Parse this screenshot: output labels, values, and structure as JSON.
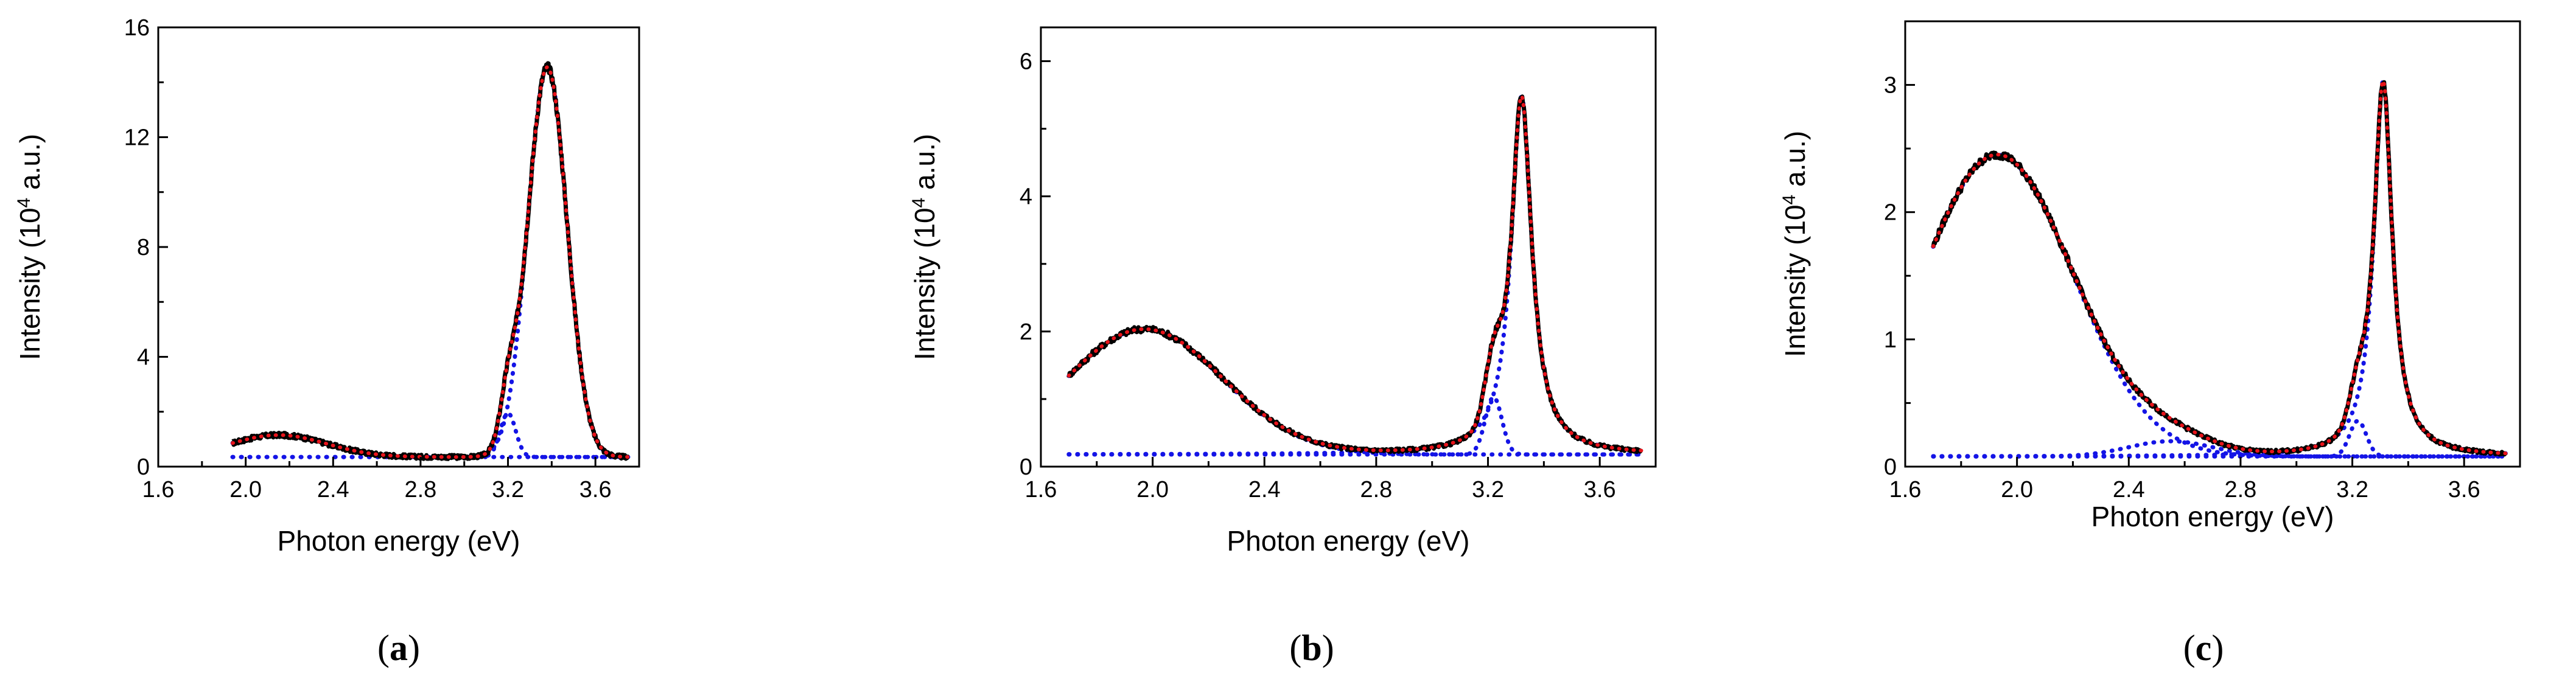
{
  "colors": {
    "data": "#000000",
    "fit": "#e8141b",
    "component": "#1414e6",
    "axis": "#000000"
  },
  "chart_data": [
    {
      "type": "line",
      "panel_label": "a",
      "xlabel": "Photon energy (eV)",
      "ylabel_main": "Intensity (10",
      "ylabel_sup": "4",
      "ylabel_tail": " a.u.)",
      "xlim": [
        1.6,
        3.8
      ],
      "ylim": [
        0,
        16
      ],
      "xticks": [
        1.6,
        2.0,
        2.4,
        2.8,
        3.2,
        3.6
      ],
      "xtick_labels": [
        "1.6",
        "2.0",
        "2.4",
        "2.8",
        "3.2",
        "3.6"
      ],
      "yticks": [
        0,
        4,
        8,
        12,
        16
      ],
      "ytick_labels": [
        "0",
        "4",
        "8",
        "12",
        "16"
      ],
      "x_range": [
        1.94,
        3.75
      ],
      "baseline": 0.35,
      "peaks": [
        {
          "center": 2.15,
          "amplitude": 0.8,
          "sigma": 0.22,
          "shape": "gauss"
        },
        {
          "center": 3.2,
          "amplitude": 1.6,
          "sigma": 0.035,
          "shape": "gauss"
        },
        {
          "center": 3.38,
          "amplitude": 14.2,
          "sigma": 0.09,
          "shape": "gauss"
        }
      ],
      "data_noise": 0.35,
      "series": [
        {
          "name": "Measured spectrum",
          "style": "solid-black"
        },
        {
          "name": "Total fit",
          "style": "dotted-red"
        },
        {
          "name": "Components",
          "style": "dotted-blue"
        }
      ]
    },
    {
      "type": "line",
      "panel_label": "b",
      "xlabel": "Photon energy (eV)",
      "ylabel_main": "Intensity (10",
      "ylabel_sup": "4",
      "ylabel_tail": " a.u.)",
      "xlim": [
        1.6,
        3.8
      ],
      "ylim": [
        0,
        6.5
      ],
      "xticks": [
        1.6,
        2.0,
        2.4,
        2.8,
        3.2,
        3.6
      ],
      "xtick_labels": [
        "1.6",
        "2.0",
        "2.4",
        "2.8",
        "3.2",
        "3.6"
      ],
      "yticks": [
        0,
        2,
        4,
        6
      ],
      "ytick_labels": [
        "0",
        "2",
        "4",
        "6"
      ],
      "x_range": [
        1.7,
        3.75
      ],
      "baseline": 0.18,
      "peaks": [
        {
          "center": 1.97,
          "amplitude": 1.85,
          "sigma": 0.28,
          "shape": "gauss"
        },
        {
          "center": 3.22,
          "amplitude": 0.85,
          "sigma": 0.03,
          "shape": "gauss"
        },
        {
          "center": 3.32,
          "amplitude": 5.3,
          "sigma": 0.045,
          "shape": "lorentz"
        }
      ],
      "data_noise": 0.12,
      "series": [
        {
          "name": "Measured spectrum",
          "style": "solid-black"
        },
        {
          "name": "Total fit",
          "style": "dotted-red"
        },
        {
          "name": "Components",
          "style": "dotted-blue"
        }
      ]
    },
    {
      "type": "line",
      "panel_label": "c",
      "xlabel": "Photon energy (eV)",
      "ylabel_main": "Intensity (10",
      "ylabel_sup": "4",
      "ylabel_tail": " a.u.)",
      "xlim": [
        1.6,
        3.8
      ],
      "ylim": [
        0,
        3.5
      ],
      "xticks": [
        1.6,
        2.0,
        2.4,
        2.8,
        3.2,
        3.6
      ],
      "xtick_labels": [
        "1.6",
        "2.0",
        "2.4",
        "2.8",
        "3.2",
        "3.6"
      ],
      "yticks": [
        0,
        1,
        2,
        3
      ],
      "ytick_labels": [
        "0",
        "1",
        "2",
        "3"
      ],
      "x_range": [
        1.7,
        3.75
      ],
      "baseline": 0.08,
      "peaks": [
        {
          "center": 1.93,
          "amplitude": 2.37,
          "sigma": 0.27,
          "shape": "gauss"
        },
        {
          "center": 2.55,
          "amplitude": 0.12,
          "sigma": 0.15,
          "shape": "gauss"
        },
        {
          "center": 3.22,
          "amplitude": 0.28,
          "sigma": 0.03,
          "shape": "gauss"
        },
        {
          "center": 3.31,
          "amplitude": 2.95,
          "sigma": 0.04,
          "shape": "lorentz"
        }
      ],
      "data_noise": 0.06,
      "series": [
        {
          "name": "Measured spectrum",
          "style": "solid-black"
        },
        {
          "name": "Total fit",
          "style": "dotted-red"
        },
        {
          "name": "Components",
          "style": "dotted-blue"
        }
      ]
    }
  ]
}
